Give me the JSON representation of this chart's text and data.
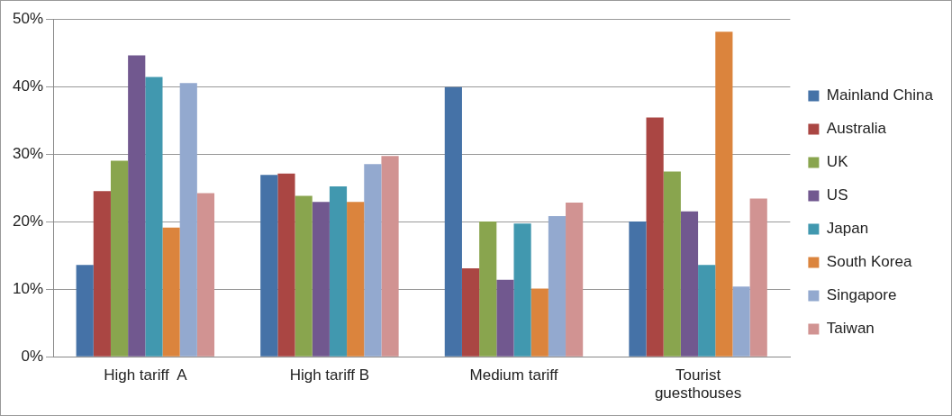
{
  "chart_data": {
    "type": "bar",
    "categories": [
      "High tariff  A",
      "High tariff B",
      "Medium tariff",
      "Tourist guesthouses"
    ],
    "series": [
      {
        "name": "Mainland China",
        "color": "#4572a7",
        "values": [
          13.6,
          26.9,
          39.9,
          20.0
        ]
      },
      {
        "name": "Australia",
        "color": "#aa4643",
        "values": [
          24.5,
          27.1,
          13.1,
          35.4
        ]
      },
      {
        "name": "UK",
        "color": "#89a54e",
        "values": [
          29.0,
          23.8,
          20.0,
          27.4
        ]
      },
      {
        "name": "US",
        "color": "#71588f",
        "values": [
          44.6,
          22.9,
          11.4,
          21.5
        ]
      },
      {
        "name": "Japan",
        "color": "#4198af",
        "values": [
          41.4,
          25.2,
          19.7,
          13.6
        ]
      },
      {
        "name": "South Korea",
        "color": "#db843d",
        "values": [
          19.1,
          22.9,
          10.1,
          48.1
        ]
      },
      {
        "name": "Singapore",
        "color": "#93a9cf",
        "values": [
          40.5,
          28.5,
          20.8,
          10.4
        ]
      },
      {
        "name": "Taiwan",
        "color": "#d19392",
        "values": [
          24.2,
          29.7,
          22.8,
          23.4
        ]
      }
    ],
    "ylim": [
      0,
      50
    ],
    "yticks": [
      {
        "value": 0,
        "label": "0%"
      },
      {
        "value": 10,
        "label": "10%"
      },
      {
        "value": 20,
        "label": "20%"
      },
      {
        "value": 30,
        "label": "30%"
      },
      {
        "value": 40,
        "label": "40%"
      },
      {
        "value": 50,
        "label": "50%"
      }
    ],
    "grid": "y",
    "legend": "right"
  }
}
